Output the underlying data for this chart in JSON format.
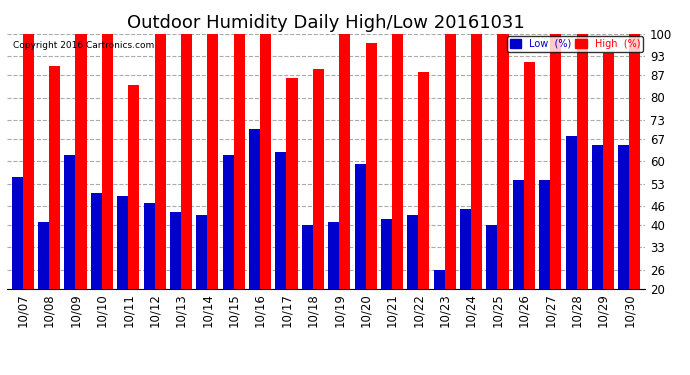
{
  "title": "Outdoor Humidity Daily High/Low 20161031",
  "copyright": "Copyright 2016 Cartronics.com",
  "dates": [
    "10/07",
    "10/08",
    "10/09",
    "10/10",
    "10/11",
    "10/12",
    "10/13",
    "10/14",
    "10/15",
    "10/16",
    "10/17",
    "10/18",
    "10/19",
    "10/20",
    "10/21",
    "10/22",
    "10/23",
    "10/24",
    "10/25",
    "10/26",
    "10/27",
    "10/28",
    "10/29",
    "10/30"
  ],
  "high": [
    100,
    90,
    100,
    100,
    84,
    100,
    100,
    100,
    100,
    100,
    86,
    89,
    100,
    97,
    100,
    88,
    100,
    100,
    100,
    91,
    100,
    100,
    94,
    100
  ],
  "low": [
    55,
    41,
    62,
    50,
    49,
    47,
    44,
    43,
    62,
    70,
    63,
    40,
    41,
    59,
    42,
    43,
    26,
    45,
    40,
    54,
    54,
    68,
    65,
    65
  ],
  "high_color": "#ff0000",
  "low_color": "#0000cc",
  "bg_color": "#ffffff",
  "plot_bg_color": "#ffffff",
  "ylim_min": 20,
  "ylim_max": 100,
  "yticks": [
    20,
    26,
    33,
    40,
    46,
    53,
    60,
    67,
    73,
    80,
    87,
    93,
    100
  ],
  "grid_color": "#aaaaaa",
  "title_fontsize": 13,
  "tick_fontsize": 8.5,
  "bar_width": 0.42,
  "legend_low_label": "Low  (%)",
  "legend_high_label": "High  (%)",
  "bar_bottom": 20
}
